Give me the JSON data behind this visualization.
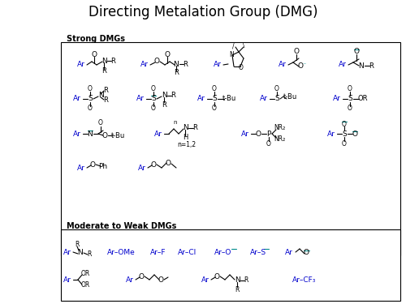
{
  "title": "Directing Metalation Group (DMG)",
  "background": "#ffffff",
  "strong_label": "Strong DMGs",
  "moderate_label": "Moderate to Weak DMGs",
  "blue": "#0000CD",
  "black": "#000000",
  "cyan": "#008B8B"
}
